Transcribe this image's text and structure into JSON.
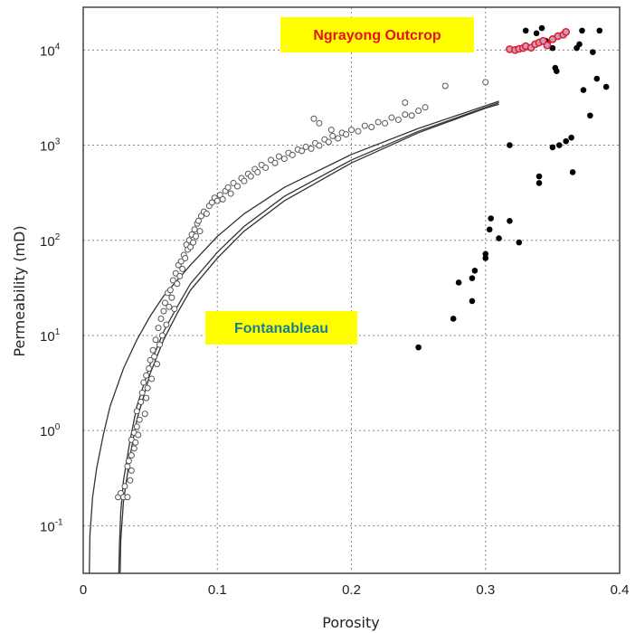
{
  "chart_data": {
    "type": "scatter",
    "xlabel": "Porosity",
    "ylabel": "Permeability (mD)",
    "xlim": [
      0,
      0.4
    ],
    "ylim_log10": [
      -1.5,
      4.45
    ],
    "yscale": "log",
    "grid": true,
    "x_ticks": [
      "0",
      "0.1",
      "0.2",
      "0.3",
      "0.4"
    ],
    "y_ticks": [
      {
        "base": "10",
        "exp": "-1"
      },
      {
        "base": "10",
        "exp": "0"
      },
      {
        "base": "10",
        "exp": "1"
      },
      {
        "base": "10",
        "exp": "2"
      },
      {
        "base": "10",
        "exp": "3"
      },
      {
        "base": "10",
        "exp": "4"
      }
    ],
    "annotations": [
      {
        "text": "Ngrayong Outcrop",
        "color": "#e8121b",
        "background": "#ffff00"
      },
      {
        "text": "Fontanableau",
        "color": "#1a7f8c",
        "background": "#ffff00"
      }
    ],
    "series": [
      {
        "style": "open-circle",
        "color": "#555555",
        "points": [
          [
            0.026,
            0.2
          ],
          [
            0.028,
            0.22
          ],
          [
            0.03,
            0.2
          ],
          [
            0.031,
            0.26
          ],
          [
            0.033,
            0.2
          ],
          [
            0.035,
            0.3
          ],
          [
            0.036,
            0.38
          ],
          [
            0.033,
            0.42
          ],
          [
            0.034,
            0.48
          ],
          [
            0.036,
            0.55
          ],
          [
            0.038,
            0.65
          ],
          [
            0.036,
            0.8
          ],
          [
            0.038,
            0.95
          ],
          [
            0.04,
            1.1
          ],
          [
            0.039,
            0.75
          ],
          [
            0.041,
            0.9
          ],
          [
            0.042,
            1.3
          ],
          [
            0.04,
            1.6
          ],
          [
            0.043,
            2.0
          ],
          [
            0.044,
            2.5
          ],
          [
            0.045,
            3.2
          ],
          [
            0.046,
            1.5
          ],
          [
            0.047,
            2.2
          ],
          [
            0.048,
            2.8
          ],
          [
            0.047,
            3.8
          ],
          [
            0.049,
            4.5
          ],
          [
            0.05,
            5.5
          ],
          [
            0.051,
            3.5
          ],
          [
            0.052,
            7.0
          ],
          [
            0.053,
            6.0
          ],
          [
            0.054,
            9.0
          ],
          [
            0.055,
            5.0
          ],
          [
            0.056,
            12
          ],
          [
            0.057,
            8.0
          ],
          [
            0.058,
            15
          ],
          [
            0.059,
            10
          ],
          [
            0.06,
            18
          ],
          [
            0.061,
            22
          ],
          [
            0.062,
            13
          ],
          [
            0.063,
            28
          ],
          [
            0.064,
            20
          ],
          [
            0.065,
            30
          ],
          [
            0.066,
            25
          ],
          [
            0.067,
            38
          ],
          [
            0.068,
            19
          ],
          [
            0.069,
            45
          ],
          [
            0.07,
            35
          ],
          [
            0.071,
            55
          ],
          [
            0.072,
            42
          ],
          [
            0.073,
            60
          ],
          [
            0.074,
            50
          ],
          [
            0.075,
            70
          ],
          [
            0.076,
            65
          ],
          [
            0.077,
            90
          ],
          [
            0.078,
            80
          ],
          [
            0.079,
            100
          ],
          [
            0.08,
            85
          ],
          [
            0.081,
            115
          ],
          [
            0.082,
            95
          ],
          [
            0.083,
            130
          ],
          [
            0.084,
            110
          ],
          [
            0.085,
            150
          ],
          [
            0.086,
            160
          ],
          [
            0.087,
            125
          ],
          [
            0.088,
            180
          ],
          [
            0.09,
            200
          ],
          [
            0.092,
            190
          ],
          [
            0.094,
            230
          ],
          [
            0.096,
            250
          ],
          [
            0.098,
            280
          ],
          [
            0.1,
            260
          ],
          [
            0.102,
            300
          ],
          [
            0.104,
            270
          ],
          [
            0.106,
            330
          ],
          [
            0.108,
            360
          ],
          [
            0.11,
            310
          ],
          [
            0.112,
            400
          ],
          [
            0.115,
            370
          ],
          [
            0.118,
            450
          ],
          [
            0.12,
            420
          ],
          [
            0.123,
            500
          ],
          [
            0.125,
            470
          ],
          [
            0.128,
            560
          ],
          [
            0.13,
            520
          ],
          [
            0.133,
            620
          ],
          [
            0.136,
            580
          ],
          [
            0.14,
            700
          ],
          [
            0.143,
            650
          ],
          [
            0.146,
            760
          ],
          [
            0.15,
            720
          ],
          [
            0.153,
            830
          ],
          [
            0.156,
            790
          ],
          [
            0.16,
            900
          ],
          [
            0.163,
            870
          ],
          [
            0.166,
            960
          ],
          [
            0.17,
            920
          ],
          [
            0.173,
            1050
          ],
          [
            0.176,
            990
          ],
          [
            0.18,
            1150
          ],
          [
            0.183,
            1080
          ],
          [
            0.186,
            1250
          ],
          [
            0.19,
            1180
          ],
          [
            0.193,
            1350
          ],
          [
            0.196,
            1300
          ],
          [
            0.2,
            1450
          ],
          [
            0.205,
            1400
          ],
          [
            0.21,
            1600
          ],
          [
            0.215,
            1550
          ],
          [
            0.22,
            1750
          ],
          [
            0.225,
            1700
          ],
          [
            0.23,
            1950
          ],
          [
            0.235,
            1850
          ],
          [
            0.24,
            2100
          ],
          [
            0.245,
            2050
          ],
          [
            0.25,
            2300
          ],
          [
            0.172,
            1900
          ],
          [
            0.176,
            1700
          ],
          [
            0.185,
            1450
          ],
          [
            0.24,
            2800
          ],
          [
            0.255,
            2500
          ],
          [
            0.27,
            4200
          ],
          [
            0.3,
            4600
          ]
        ]
      },
      {
        "style": "filled-circle",
        "color": "#000000",
        "points": [
          [
            0.25,
            7.5
          ],
          [
            0.276,
            15
          ],
          [
            0.28,
            36
          ],
          [
            0.29,
            23
          ],
          [
            0.29,
            40
          ],
          [
            0.292,
            48
          ],
          [
            0.3,
            65
          ],
          [
            0.3,
            72
          ],
          [
            0.303,
            130
          ],
          [
            0.304,
            170
          ],
          [
            0.31,
            105
          ],
          [
            0.318,
            160
          ],
          [
            0.318,
            1000
          ],
          [
            0.325,
            95
          ],
          [
            0.33,
            16000
          ],
          [
            0.338,
            15000
          ],
          [
            0.34,
            400
          ],
          [
            0.34,
            470
          ],
          [
            0.342,
            17000
          ],
          [
            0.345,
            12500
          ],
          [
            0.35,
            10500
          ],
          [
            0.35,
            950
          ],
          [
            0.353,
            6000
          ],
          [
            0.352,
            6500
          ],
          [
            0.355,
            1000
          ],
          [
            0.36,
            1100
          ],
          [
            0.364,
            1200
          ],
          [
            0.365,
            520
          ],
          [
            0.368,
            10500
          ],
          [
            0.37,
            11500
          ],
          [
            0.372,
            16000
          ],
          [
            0.373,
            3800
          ],
          [
            0.378,
            2050
          ],
          [
            0.38,
            9500
          ],
          [
            0.385,
            16000
          ],
          [
            0.383,
            5000
          ],
          [
            0.39,
            4100
          ]
        ]
      },
      {
        "style": "red-open-circle",
        "color": "#e8121b",
        "points": [
          [
            0.318,
            10200
          ],
          [
            0.322,
            10000
          ],
          [
            0.325,
            10300
          ],
          [
            0.328,
            10500
          ],
          [
            0.33,
            11000
          ],
          [
            0.334,
            10600
          ],
          [
            0.337,
            11500
          ],
          [
            0.34,
            12000
          ],
          [
            0.343,
            12500
          ],
          [
            0.346,
            11200
          ],
          [
            0.35,
            13000
          ],
          [
            0.354,
            14000
          ],
          [
            0.358,
            14500
          ],
          [
            0.36,
            15500
          ]
        ]
      }
    ],
    "curves": [
      {
        "name": "",
        "points": [
          [
            0.0045,
            0.03
          ],
          [
            0.005,
            0.08
          ],
          [
            0.007,
            0.2
          ],
          [
            0.01,
            0.4
          ],
          [
            0.015,
            0.9
          ],
          [
            0.02,
            1.8
          ],
          [
            0.03,
            4.5
          ],
          [
            0.04,
            9
          ],
          [
            0.05,
            16
          ],
          [
            0.06,
            26
          ],
          [
            0.08,
            55
          ],
          [
            0.1,
            110
          ],
          [
            0.12,
            190
          ],
          [
            0.15,
            360
          ],
          [
            0.2,
            800
          ],
          [
            0.25,
            1500
          ],
          [
            0.3,
            2600
          ],
          [
            0.31,
            2900
          ]
        ]
      },
      {
        "name": "",
        "points": [
          [
            0.0265,
            0.03
          ],
          [
            0.027,
            0.06
          ],
          [
            0.028,
            0.14
          ],
          [
            0.03,
            0.3
          ],
          [
            0.035,
            0.8
          ],
          [
            0.04,
            1.8
          ],
          [
            0.05,
            5
          ],
          [
            0.06,
            11
          ],
          [
            0.07,
            20
          ],
          [
            0.08,
            35
          ],
          [
            0.1,
            75
          ],
          [
            0.12,
            140
          ],
          [
            0.15,
            290
          ],
          [
            0.2,
            700
          ],
          [
            0.25,
            1400
          ],
          [
            0.3,
            2500
          ],
          [
            0.31,
            2800
          ]
        ]
      },
      {
        "name": "",
        "points": [
          [
            0.0275,
            0.03
          ],
          [
            0.028,
            0.07
          ],
          [
            0.03,
            0.18
          ],
          [
            0.035,
            0.55
          ],
          [
            0.04,
            1.3
          ],
          [
            0.05,
            4
          ],
          [
            0.06,
            9
          ],
          [
            0.07,
            17
          ],
          [
            0.08,
            30
          ],
          [
            0.1,
            65
          ],
          [
            0.12,
            125
          ],
          [
            0.15,
            260
          ],
          [
            0.2,
            650
          ],
          [
            0.25,
            1350
          ],
          [
            0.3,
            2450
          ],
          [
            0.31,
            2700
          ]
        ]
      }
    ]
  }
}
